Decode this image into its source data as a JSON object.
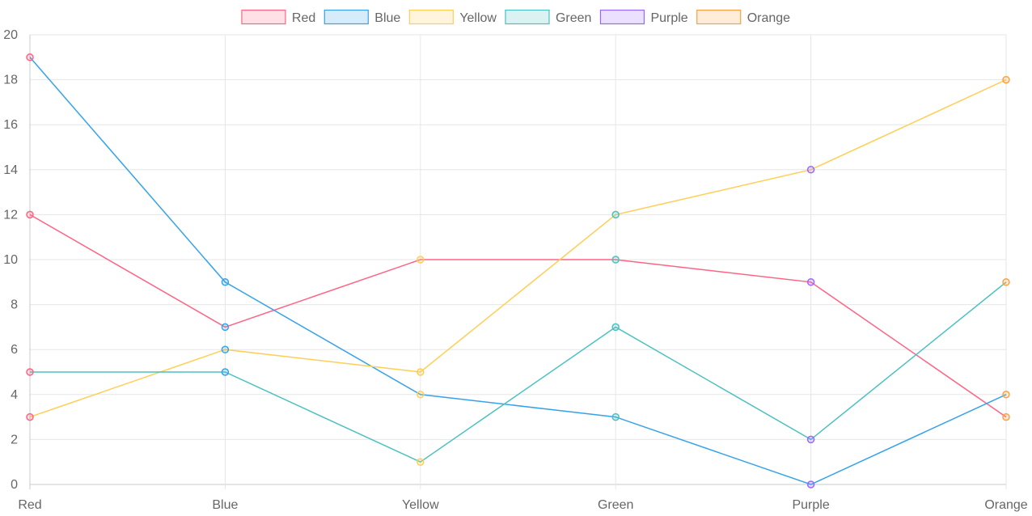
{
  "chart_data": {
    "type": "line",
    "categories": [
      "Red",
      "Blue",
      "Yellow",
      "Green",
      "Purple",
      "Orange"
    ],
    "ylim": [
      0,
      20
    ],
    "ytick_step": 2,
    "grid": true,
    "legend_position": "top-center",
    "series": [
      {
        "name": "Red",
        "values": [
          12,
          7,
          10,
          10,
          9,
          3
        ],
        "color": "#ff6384"
      },
      {
        "name": "Blue",
        "values": [
          19,
          9,
          4,
          3,
          0,
          4
        ],
        "color": "#36a2eb"
      },
      {
        "name": "Yellow",
        "values": [
          3,
          6,
          5,
          12,
          14,
          18
        ],
        "color": "#ffce56"
      },
      {
        "name": "Green",
        "values": [
          5,
          5,
          1,
          7,
          2,
          9
        ],
        "color": "#4bc0c0"
      },
      {
        "name": "Purple",
        "values": [
          null,
          null,
          null,
          null,
          null,
          null
        ],
        "color": "#9966ff"
      },
      {
        "name": "Orange",
        "values": [
          null,
          null,
          null,
          null,
          null,
          null
        ],
        "color": "#ff9f40"
      }
    ],
    "point_border_colors": [
      "#ff6384",
      "#36a2eb",
      "#ffce56",
      "#4bc0c0",
      "#9966ff",
      "#ff9f40"
    ]
  }
}
